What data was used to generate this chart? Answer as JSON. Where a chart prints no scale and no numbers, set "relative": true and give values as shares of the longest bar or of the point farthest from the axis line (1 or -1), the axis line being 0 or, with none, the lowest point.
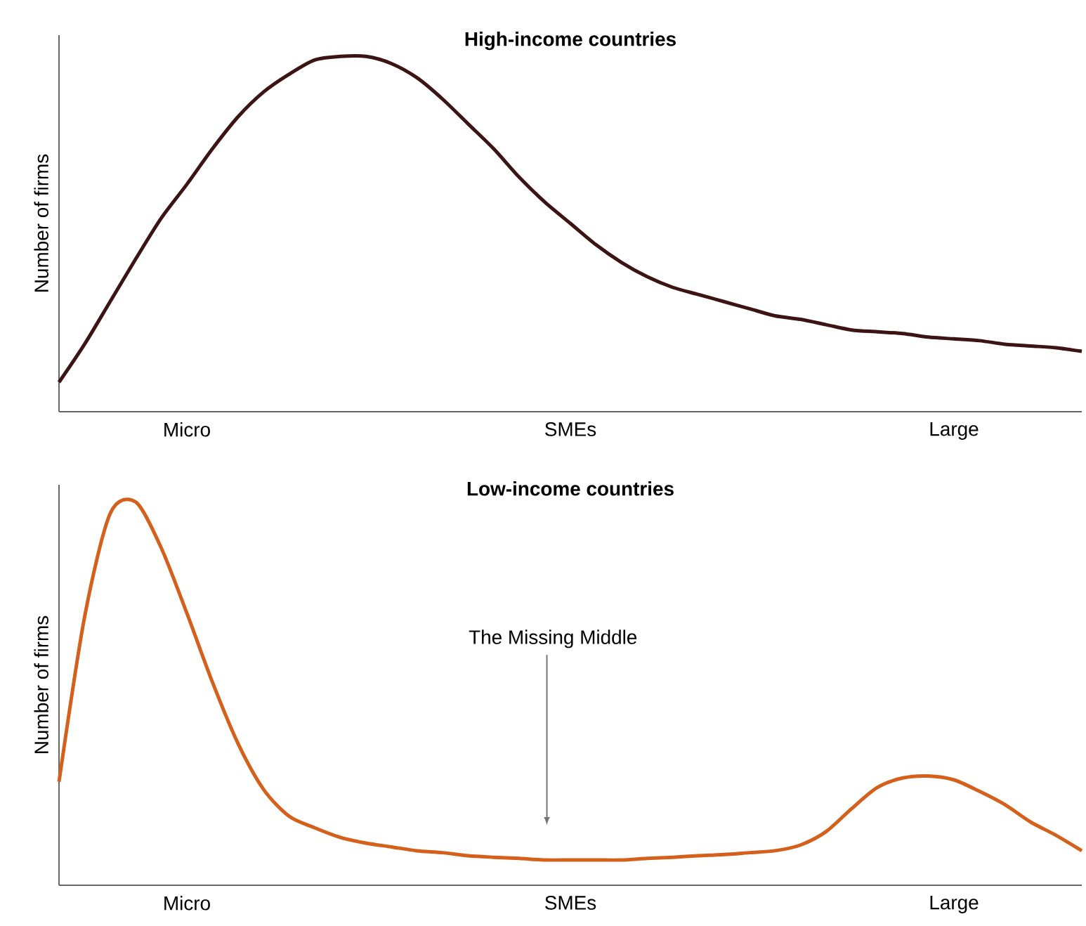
{
  "chart_data": [
    {
      "type": "line",
      "title": "High-income countries",
      "ylabel": "Number of firms",
      "relative": true,
      "tick_labels": "x",
      "color": "#3d1414",
      "categories": [
        null,
        null,
        null,
        null,
        null,
        "Micro",
        null,
        null,
        null,
        null,
        null,
        null,
        null,
        null,
        null,
        null,
        null,
        null,
        null,
        null,
        "SMEs",
        null,
        null,
        null,
        null,
        null,
        null,
        null,
        null,
        null,
        null,
        null,
        null,
        null,
        null,
        "Large",
        null,
        null,
        null,
        null,
        null
      ],
      "values": [
        0.083,
        0.19,
        0.31,
        0.43,
        0.545,
        0.64,
        0.74,
        0.83,
        0.9,
        0.95,
        0.99,
        1.0,
        1.0,
        0.98,
        0.94,
        0.88,
        0.81,
        0.74,
        0.66,
        0.59,
        0.53,
        0.47,
        0.42,
        0.38,
        0.35,
        0.33,
        0.31,
        0.29,
        0.27,
        0.26,
        0.245,
        0.23,
        0.225,
        0.22,
        0.21,
        0.205,
        0.2,
        0.19,
        0.185,
        0.18,
        0.17
      ]
    },
    {
      "type": "line",
      "title": "Low-income countries",
      "ylabel": "Number of firms",
      "relative": true,
      "tick_labels": "x",
      "color": "#d4601c",
      "annotations": [
        "The Missing Middle"
      ],
      "categories": [
        null,
        null,
        null,
        null,
        null,
        "Micro",
        null,
        null,
        null,
        null,
        null,
        null,
        null,
        null,
        null,
        null,
        null,
        null,
        null,
        null,
        "SMEs",
        null,
        null,
        null,
        null,
        null,
        null,
        null,
        null,
        null,
        null,
        null,
        null,
        null,
        null,
        "Large",
        null,
        null,
        null,
        null,
        null
      ],
      "values": [
        0.27,
        0.7,
        0.97,
        1.0,
        0.88,
        0.71,
        0.53,
        0.37,
        0.25,
        0.18,
        0.15,
        0.125,
        0.11,
        0.1,
        0.09,
        0.085,
        0.077,
        0.073,
        0.07,
        0.066,
        0.066,
        0.066,
        0.066,
        0.07,
        0.073,
        0.077,
        0.08,
        0.085,
        0.09,
        0.105,
        0.14,
        0.2,
        0.255,
        0.28,
        0.285,
        0.275,
        0.245,
        0.21,
        0.165,
        0.13,
        0.09
      ]
    }
  ]
}
